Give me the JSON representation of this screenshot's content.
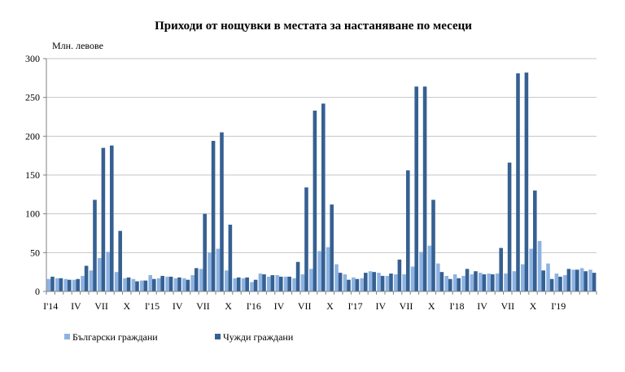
{
  "chart_data": {
    "type": "bar",
    "title": "Приходи от нощувки в местата за настаняване по месеци",
    "ylabel": "Млн. левове",
    "ylim": [
      0,
      300
    ],
    "yticks": [
      0,
      50,
      100,
      150,
      200,
      250,
      300
    ],
    "grid": true,
    "legend_position": "bottom-left",
    "categories": [
      "I'14",
      "II",
      "III",
      "IV",
      "V",
      "VI",
      "VII",
      "VIII",
      "IX",
      "X",
      "XI",
      "XII",
      "I'15",
      "II",
      "III",
      "IV",
      "V",
      "VI",
      "VII",
      "VIII",
      "IX",
      "X",
      "XI",
      "XII",
      "I'16",
      "II",
      "III",
      "IV",
      "V",
      "VI",
      "VII",
      "VIII",
      "IX",
      "X",
      "XI",
      "XII",
      "I'17",
      "II",
      "III",
      "IV",
      "V",
      "VI",
      "VII",
      "VIII",
      "IX",
      "X",
      "XI",
      "XII",
      "I'18",
      "II",
      "III",
      "IV",
      "V",
      "VI",
      "VII",
      "VIII",
      "IX",
      "X",
      "XI",
      "XII",
      "I'19",
      "II",
      "III",
      "IV",
      "V"
    ],
    "x_tick_labels": [
      {
        "index": 0,
        "label": "I'14"
      },
      {
        "index": 3,
        "label": "IV"
      },
      {
        "index": 6,
        "label": "VII"
      },
      {
        "index": 9,
        "label": "X"
      },
      {
        "index": 12,
        "label": "I'15"
      },
      {
        "index": 15,
        "label": "IV"
      },
      {
        "index": 18,
        "label": "VII"
      },
      {
        "index": 21,
        "label": "X"
      },
      {
        "index": 24,
        "label": "I'16"
      },
      {
        "index": 27,
        "label": "IV"
      },
      {
        "index": 30,
        "label": "VII"
      },
      {
        "index": 33,
        "label": "X"
      },
      {
        "index": 36,
        "label": "I'17"
      },
      {
        "index": 39,
        "label": "IV"
      },
      {
        "index": 42,
        "label": "VII"
      },
      {
        "index": 45,
        "label": "X"
      },
      {
        "index": 48,
        "label": "I'18"
      },
      {
        "index": 51,
        "label": "IV"
      },
      {
        "index": 54,
        "label": "VII"
      },
      {
        "index": 57,
        "label": "X"
      },
      {
        "index": 60,
        "label": "I'19"
      }
    ],
    "series": [
      {
        "name": "Български граждани",
        "color": "#8db3e2",
        "values": [
          16,
          17,
          16,
          15,
          20,
          27,
          43,
          51,
          25,
          17,
          16,
          14,
          21,
          17,
          19,
          17,
          17,
          21,
          29,
          50,
          55,
          27,
          17,
          17,
          12,
          23,
          19,
          21,
          19,
          17,
          22,
          29,
          52,
          57,
          35,
          22,
          18,
          17,
          26,
          24,
          20,
          22,
          22,
          32,
          51,
          59,
          36,
          20,
          22,
          20,
          22,
          24,
          23,
          23,
          23,
          26,
          35,
          55,
          65,
          36,
          23,
          21,
          28,
          30,
          28
        ]
      },
      {
        "name": "Чужди граждани",
        "color": "#366092",
        "values": [
          19,
          17,
          15,
          16,
          33,
          118,
          185,
          188,
          78,
          18,
          13,
          14,
          16,
          20,
          19,
          18,
          15,
          30,
          100,
          194,
          205,
          86,
          18,
          18,
          15,
          22,
          21,
          19,
          19,
          38,
          134,
          233,
          242,
          112,
          24,
          15,
          16,
          24,
          25,
          20,
          23,
          41,
          156,
          264,
          264,
          118,
          25,
          16,
          17,
          29,
          26,
          22,
          22,
          56,
          166,
          281,
          282,
          130,
          27,
          16,
          19,
          29,
          28,
          26,
          24
        ]
      }
    ]
  }
}
